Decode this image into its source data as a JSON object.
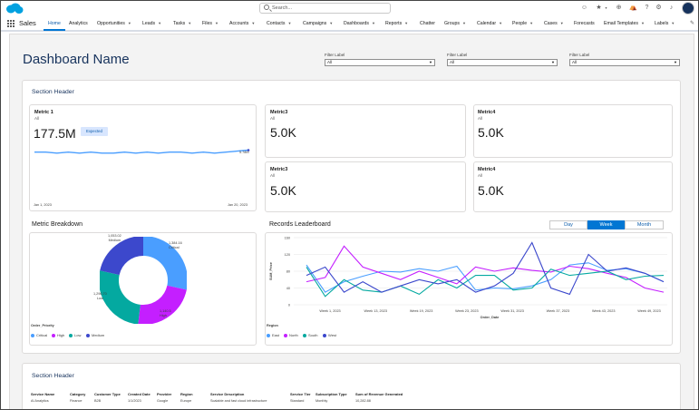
{
  "header": {
    "search_placeholder": "Search...",
    "icons": [
      "einstein-icon",
      "favorites-icon",
      "add-icon",
      "trailhead-icon",
      "help-icon",
      "setup-icon",
      "notifications-icon",
      "avatar"
    ]
  },
  "nav": {
    "app_name": "Sales",
    "tabs": [
      {
        "label": "Home",
        "chevron": false
      },
      {
        "label": "Analytics",
        "chevron": false
      },
      {
        "label": "Opportunities",
        "chevron": true
      },
      {
        "label": "Leads",
        "chevron": true
      },
      {
        "label": "Tasks",
        "chevron": true
      },
      {
        "label": "Files",
        "chevron": true
      },
      {
        "label": "Accounts",
        "chevron": true
      },
      {
        "label": "Contacts",
        "chevron": true
      },
      {
        "label": "Campaigns",
        "chevron": true
      },
      {
        "label": "Dashboards",
        "chevron": true
      },
      {
        "label": "Reports",
        "chevron": true
      },
      {
        "label": "Chatter",
        "chevron": false
      },
      {
        "label": "Groups",
        "chevron": true
      },
      {
        "label": "Calendar",
        "chevron": true
      },
      {
        "label": "People",
        "chevron": true
      },
      {
        "label": "Cases",
        "chevron": true
      },
      {
        "label": "Forecasts",
        "chevron": false
      },
      {
        "label": "Email Templates",
        "chevron": true
      },
      {
        "label": "Labels",
        "chevron": true
      }
    ]
  },
  "dashboard": {
    "title": "Dashboard Name",
    "filters": [
      {
        "label": "Filter Label",
        "value": "All"
      },
      {
        "label": "Filter Label",
        "value": "All"
      },
      {
        "label": "Filter Label",
        "value": "All"
      }
    ]
  },
  "section1": {
    "header": "Section Header",
    "metric1": {
      "title": "Metric 1",
      "subtitle": "All",
      "value": "177.5M",
      "badge": "Expected",
      "spark_end": "5.78M",
      "date_start": "Jan 1, 2023",
      "date_end": "Jan 20, 2023"
    },
    "metrics": [
      {
        "title": "Metric3",
        "subtitle": "All",
        "value": "5.0K"
      },
      {
        "title": "Metric4",
        "subtitle": "All",
        "value": "5.0K"
      },
      {
        "title": "Metric3",
        "subtitle": "All",
        "value": "5.0K"
      },
      {
        "title": "Metric4",
        "subtitle": "All",
        "value": "5.0K"
      }
    ],
    "breakdown": {
      "title": "Metric Breakdown",
      "labels": {
        "medium": [
          "1,053.02",
          "Medium"
        ],
        "critical": [
          "1,384.16",
          "Critical"
        ],
        "low": [
          "1,296.70",
          "Low"
        ],
        "high": [
          "1,140.5",
          "High"
        ]
      },
      "legend_title": "Order_Priority",
      "legend": [
        {
          "name": "Critical",
          "color": "#4a9eff"
        },
        {
          "name": "High",
          "color": "#c41fff"
        },
        {
          "name": "Low",
          "color": "#04a9a0"
        },
        {
          "name": "Medium",
          "color": "#3c48cc"
        }
      ]
    },
    "leaderboard": {
      "title": "Records Leaderboard",
      "toggles": [
        "Day",
        "Week",
        "Month"
      ],
      "active_toggle": "Week",
      "legend_title": "Region",
      "legend": [
        {
          "name": "East",
          "color": "#4a9eff"
        },
        {
          "name": "North",
          "color": "#c41fff"
        },
        {
          "name": "South",
          "color": "#04a9a0"
        },
        {
          "name": "West",
          "color": "#3c48cc"
        }
      ]
    }
  },
  "section2": {
    "header": "Section Header",
    "columns": [
      "Service Name",
      "Category",
      "Customer Type",
      "Created Date",
      "Provider",
      "Region",
      "Service Description",
      "Service Tier",
      "Subscription Type",
      "Sum of Revenue Generated"
    ],
    "row": [
      "AI Analytics",
      "Finance",
      "B2B",
      "1/1/2023",
      "Google",
      "Europe",
      "Scalable and fast cloud infrastructure",
      "Standard",
      "Monthly",
      "10,282.88"
    ]
  },
  "chart_data": [
    {
      "type": "pie",
      "title": "Metric Breakdown",
      "categories": [
        "Critical",
        "High",
        "Low",
        "Medium"
      ],
      "values": [
        1384.16,
        1140.5,
        1296.7,
        1053.02
      ],
      "colors": [
        "#4a9eff",
        "#c41fff",
        "#04a9a0",
        "#3c48cc"
      ],
      "legend_title": "Order_Priority",
      "legend": "bottom-left"
    },
    {
      "type": "line",
      "title": "Records Leaderboard",
      "xlabel": "Order_Date",
      "ylabel": "SUM_Price",
      "ylim": [
        0,
        160
      ],
      "yticks": [
        0,
        40,
        80,
        120,
        160
      ],
      "x_tick_labels": [
        "Week 1, 2023",
        "Week 13, 2023",
        "Week 19, 2023",
        "Week 23, 2023",
        "Week 31, 2023",
        "Week 37, 2023",
        "Week 43, 2023",
        "Week 49, 2023"
      ],
      "points_per_series": 20,
      "series": [
        {
          "name": "East",
          "color": "#4a9eff",
          "values": [
            95,
            30,
            55,
            68,
            80,
            78,
            86,
            80,
            92,
            35,
            40,
            38,
            45,
            60,
            95,
            100,
            82,
            86,
            75,
            55
          ]
        },
        {
          "name": "North",
          "color": "#c41fff",
          "values": [
            55,
            65,
            140,
            90,
            75,
            60,
            80,
            65,
            50,
            90,
            80,
            88,
            82,
            78,
            92,
            86,
            75,
            65,
            40,
            30
          ]
        },
        {
          "name": "South",
          "color": "#04a9a0",
          "values": [
            90,
            20,
            60,
            35,
            30,
            45,
            25,
            60,
            40,
            70,
            70,
            35,
            40,
            85,
            70,
            75,
            80,
            60,
            68,
            70
          ]
        },
        {
          "name": "West",
          "color": "#3c48cc",
          "values": [
            70,
            90,
            30,
            55,
            30,
            45,
            60,
            50,
            60,
            30,
            45,
            75,
            148,
            40,
            25,
            120,
            80,
            88,
            75,
            55
          ]
        }
      ],
      "legend_title": "Region",
      "legend": "bottom-left"
    },
    {
      "type": "line",
      "title": "Metric 1",
      "x_tick_labels": [
        "Jan 1, 2023",
        "Jan 20, 2023"
      ],
      "end_label": "5.78M",
      "series": [
        {
          "name": "",
          "color": "#4a9eff",
          "values": [
            53,
            53,
            52,
            53,
            52,
            53,
            52,
            52,
            53,
            52,
            53,
            52,
            53,
            53,
            52,
            53,
            52,
            53,
            54,
            55
          ]
        }
      ]
    }
  ]
}
